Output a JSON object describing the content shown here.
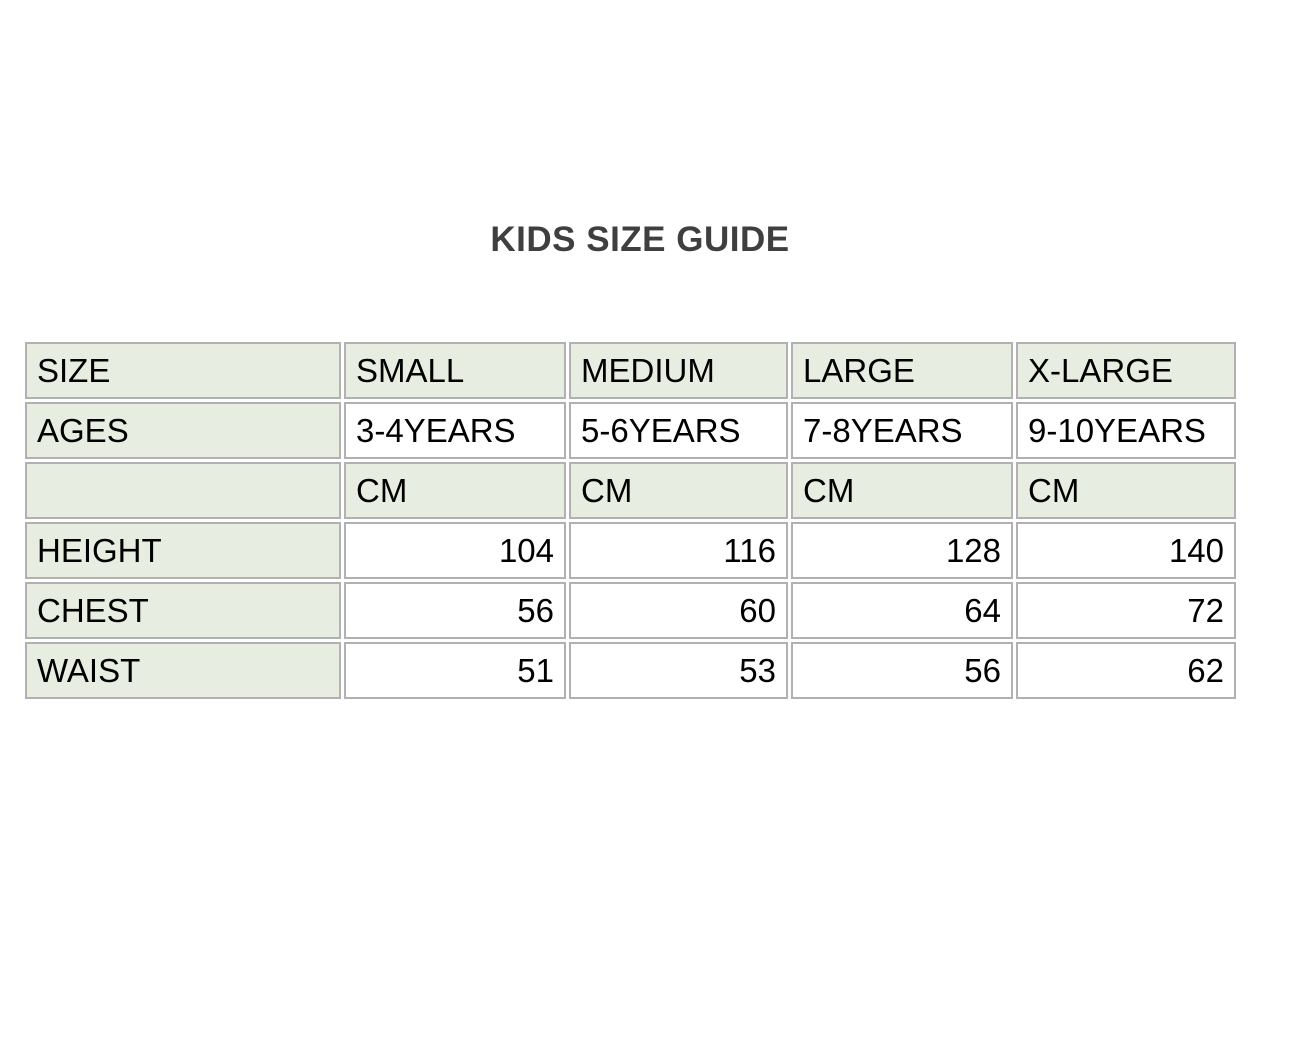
{
  "title": "KIDS SIZE GUIDE",
  "table": {
    "header_row": [
      "SIZE",
      "SMALL",
      "MEDIUM",
      "LARGE",
      "X-LARGE"
    ],
    "ages_row": [
      "AGES",
      "3-4YEARS",
      "5-6YEARS",
      "7-8YEARS",
      "9-10YEARS"
    ],
    "unit_row": [
      "",
      "CM",
      "CM",
      "CM",
      "CM"
    ],
    "rows": [
      {
        "label": "HEIGHT",
        "values": [
          104,
          116,
          128,
          140
        ]
      },
      {
        "label": "CHEST",
        "values": [
          56,
          60,
          64,
          72
        ]
      },
      {
        "label": "WAIST",
        "values": [
          51,
          53,
          56,
          62
        ]
      }
    ],
    "colors": {
      "cell_green": "#e7eee1",
      "cell_white": "#ffffff",
      "border_gray": "#b1b1b1",
      "title_text": "#3f3f3f",
      "cell_text": "#000000"
    }
  }
}
